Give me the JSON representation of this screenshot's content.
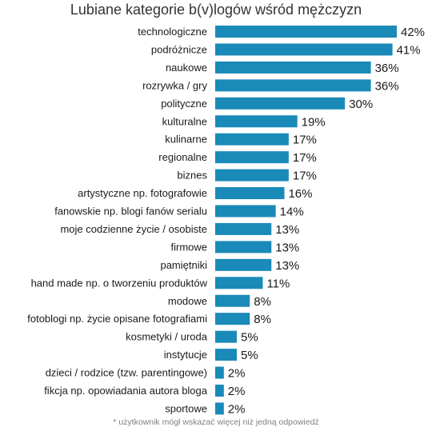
{
  "chart_data": {
    "type": "bar",
    "orientation": "horizontal",
    "title": "Lubiane kategorie b(v)logów wśród mężczyzn",
    "categories": [
      "technologiczne",
      "podróżnicze",
      "naukowe",
      "rozrywka / gry",
      "polityczne",
      "kulturalne",
      "kulinarne",
      "regionalne",
      "biznes",
      "artystyczne np. fotografowie",
      "fanowskie np. blogi fanów serialu",
      "moje codzienne życie / osobiste",
      "firmowe",
      "pamiętniki",
      "hand made np. o tworzeniu produktów",
      "modowe",
      "fotoblogi np. życie opisane fotografiami",
      "kosmetyki / uroda",
      "instytucje",
      "dzieci / rodzice (tzw. parentingowe)",
      "fikcja np. opowiadania autora bloga",
      "sportowe"
    ],
    "values": [
      42,
      41,
      36,
      36,
      30,
      19,
      17,
      17,
      17,
      16,
      14,
      13,
      13,
      13,
      11,
      8,
      8,
      5,
      5,
      2,
      2,
      2
    ],
    "value_labels": [
      "42%",
      "41%",
      "36%",
      "36%",
      "30%",
      "19%",
      "17%",
      "17%",
      "17%",
      "16%",
      "14%",
      "13%",
      "13%",
      "13%",
      "11%",
      "8%",
      "8%",
      "5%",
      "5%",
      "2%",
      "2%",
      "2%"
    ],
    "bar_color": "#1a8ab8",
    "grid": false,
    "footnote": "* użytkownik mógł wskazać więcej niż jedną odpowiedź"
  }
}
